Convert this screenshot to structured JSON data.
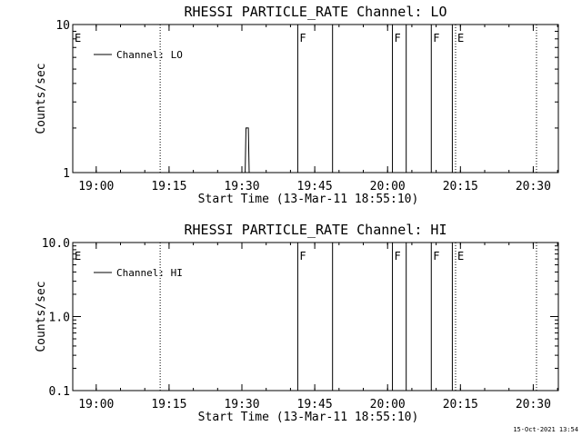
{
  "timestamp": "15-Oct-2021 13:54",
  "chart_data": [
    {
      "type": "line",
      "title": "RHESSI PARTICLE_RATE Channel: LO",
      "xlabel": "Start Time (13-Mar-11 18:55:10)",
      "ylabel": "Counts/sec",
      "yscale": "log",
      "ylim": [
        1,
        10
      ],
      "yticks": [
        1,
        10
      ],
      "ytick_labels": [
        "1",
        "10"
      ],
      "xlim": [
        "18:55:10",
        "20:35:10"
      ],
      "xticks": [
        "19:00",
        "19:15",
        "19:30",
        "19:45",
        "20:00",
        "20:15",
        "20:30"
      ],
      "legend": {
        "position": "top-left",
        "entries": [
          "Channel: LO"
        ]
      },
      "series": [
        {
          "name": "Channel: LO",
          "x": [
            "19:30:00",
            "19:30:40",
            "19:30:50",
            "19:31:20",
            "19:31:30",
            "19:32:00"
          ],
          "y": [
            1,
            1,
            2,
            2,
            1,
            1
          ]
        }
      ],
      "flag_lines": {
        "solid": [
          "19:41:30",
          "19:48:40",
          "20:01:00",
          "20:03:50",
          "20:09:00",
          "20:13:20"
        ],
        "dotted": [
          "19:13:10",
          "20:14:00",
          "20:30:40"
        ]
      },
      "markers": [
        {
          "label": "E",
          "x": "18:55:10"
        },
        {
          "label": "F",
          "x": "19:41:30"
        },
        {
          "label": "F",
          "x": "20:01:00"
        },
        {
          "label": "F",
          "x": "20:09:00"
        },
        {
          "label": "E",
          "x": "20:14:00"
        }
      ]
    },
    {
      "type": "line",
      "title": "RHESSI PARTICLE_RATE Channel: HI",
      "xlabel": "Start Time (13-Mar-11 18:55:10)",
      "ylabel": "Counts/sec",
      "yscale": "log",
      "ylim": [
        0.1,
        10
      ],
      "yticks": [
        0.1,
        1,
        10
      ],
      "ytick_labels": [
        "0.1",
        "1.0",
        "10.0"
      ],
      "xlim": [
        "18:55:10",
        "20:35:10"
      ],
      "xticks": [
        "19:00",
        "19:15",
        "19:30",
        "19:45",
        "20:00",
        "20:15",
        "20:30"
      ],
      "legend": {
        "position": "top-left",
        "entries": [
          "Channel: HI"
        ]
      },
      "series": [
        {
          "name": "Channel: HI",
          "x": [],
          "y": []
        }
      ],
      "flag_lines": {
        "solid": [
          "19:41:30",
          "19:48:40",
          "20:01:00",
          "20:03:50",
          "20:09:00",
          "20:13:20"
        ],
        "dotted": [
          "19:13:10",
          "20:14:00",
          "20:30:40"
        ]
      },
      "markers": [
        {
          "label": "E",
          "x": "18:55:10"
        },
        {
          "label": "F",
          "x": "19:41:30"
        },
        {
          "label": "F",
          "x": "20:01:00"
        },
        {
          "label": "F",
          "x": "20:09:00"
        },
        {
          "label": "E",
          "x": "20:14:00"
        }
      ]
    }
  ]
}
